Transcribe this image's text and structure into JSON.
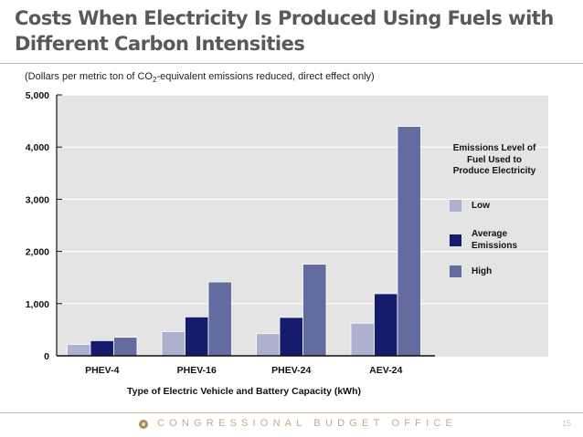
{
  "slide": {
    "title_line1": "Costs When Electricity Is Produced Using Fuels with",
    "title_line2": "Different Carbon Intensities",
    "subtitle_pre": "(Dollars per metric ton of CO",
    "subtitle_sub": "2",
    "subtitle_post": "-equivalent emissions reduced, direct effect only)",
    "footer": "CONGRESSIONAL BUDGET OFFICE",
    "page_number": "15"
  },
  "chart_data": {
    "type": "bar",
    "title": "Costs When Electricity Is Produced Using Fuels with Different Carbon Intensities",
    "ylabel": "Dollars per metric ton of CO2-equivalent emissions reduced, direct effect only",
    "xlabel": "Type of Electric Vehicle and Battery Capacity (kWh)",
    "categories": [
      "PHEV-4",
      "PHEV-16",
      "PHEV-24",
      "AEV-24"
    ],
    "ylim": [
      0,
      5000
    ],
    "yticks": [
      0,
      1000,
      2000,
      3000,
      4000,
      5000
    ],
    "ytick_labels": [
      "0",
      "1,000",
      "2,000",
      "3,000",
      "4,000",
      "5,000"
    ],
    "grid": true,
    "legend_title": "Emissions Level of Fuel Used to Produce Electricity",
    "legend_position": "right",
    "series": [
      {
        "name": "Low",
        "label_lines": [
          "Low"
        ],
        "color": "#adb1cf",
        "values": [
          220,
          465,
          425,
          625
        ]
      },
      {
        "name": "Average Emissions",
        "label_lines": [
          "Average",
          "Emissions"
        ],
        "color": "#141c6b",
        "values": [
          290,
          745,
          735,
          1190
        ]
      },
      {
        "name": "High",
        "label_lines": [
          "High"
        ],
        "color": "#646b9f",
        "values": [
          355,
          1415,
          1755,
          4395
        ]
      }
    ]
  }
}
